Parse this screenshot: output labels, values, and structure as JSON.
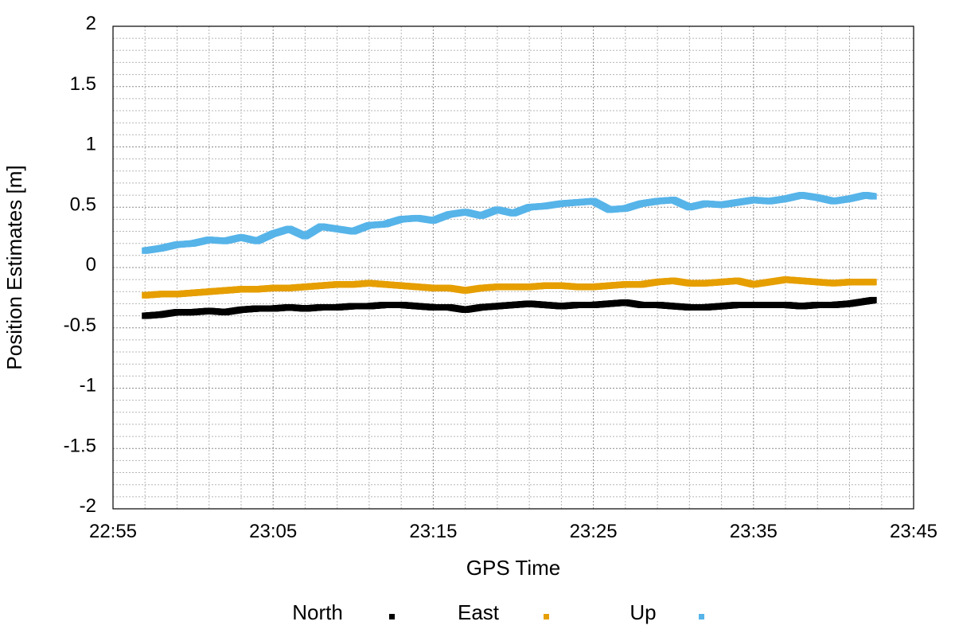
{
  "chart_data": {
    "type": "scatter",
    "title": "",
    "xlabel": "GPS Time",
    "ylabel": "Position Estimates [m]",
    "x_ticks": [
      "22:55",
      "23:05",
      "23:15",
      "23:25",
      "23:35",
      "23:45"
    ],
    "y_ticks": [
      "2",
      "1.5",
      "1",
      "0.5",
      "0",
      "-0.5",
      "-1",
      "-1.5",
      "-2"
    ],
    "xlim": [
      "22:55",
      "23:45"
    ],
    "ylim": [
      -2,
      2
    ],
    "grid": true,
    "legend_position": "bottom",
    "series": [
      {
        "name": "North",
        "color": "#000000",
        "points": [
          [
            "22:57",
            -0.4
          ],
          [
            "22:58",
            -0.39
          ],
          [
            "22:59",
            -0.37
          ],
          [
            "23:00",
            -0.37
          ],
          [
            "23:01",
            -0.36
          ],
          [
            "23:02",
            -0.37
          ],
          [
            "23:03",
            -0.35
          ],
          [
            "23:04",
            -0.34
          ],
          [
            "23:05",
            -0.34
          ],
          [
            "23:06",
            -0.33
          ],
          [
            "23:07",
            -0.34
          ],
          [
            "23:08",
            -0.33
          ],
          [
            "23:09",
            -0.33
          ],
          [
            "23:10",
            -0.32
          ],
          [
            "23:11",
            -0.32
          ],
          [
            "23:12",
            -0.31
          ],
          [
            "23:13",
            -0.31
          ],
          [
            "23:14",
            -0.32
          ],
          [
            "23:15",
            -0.33
          ],
          [
            "23:16",
            -0.33
          ],
          [
            "23:17",
            -0.35
          ],
          [
            "23:18",
            -0.33
          ],
          [
            "23:19",
            -0.32
          ],
          [
            "23:20",
            -0.31
          ],
          [
            "23:21",
            -0.3
          ],
          [
            "23:22",
            -0.31
          ],
          [
            "23:23",
            -0.32
          ],
          [
            "23:24",
            -0.31
          ],
          [
            "23:25",
            -0.31
          ],
          [
            "23:26",
            -0.3
          ],
          [
            "23:27",
            -0.29
          ],
          [
            "23:28",
            -0.31
          ],
          [
            "23:29",
            -0.31
          ],
          [
            "23:30",
            -0.32
          ],
          [
            "23:31",
            -0.33
          ],
          [
            "23:32",
            -0.33
          ],
          [
            "23:33",
            -0.32
          ],
          [
            "23:34",
            -0.31
          ],
          [
            "23:35",
            -0.31
          ],
          [
            "23:36",
            -0.31
          ],
          [
            "23:37",
            -0.31
          ],
          [
            "23:38",
            -0.32
          ],
          [
            "23:39",
            -0.31
          ],
          [
            "23:40",
            -0.31
          ],
          [
            "23:41",
            -0.3
          ],
          [
            "23:42",
            -0.28
          ],
          [
            "23:42.5",
            -0.27
          ]
        ]
      },
      {
        "name": "East",
        "color": "#E69F00",
        "points": [
          [
            "22:57",
            -0.23
          ],
          [
            "22:58",
            -0.22
          ],
          [
            "22:59",
            -0.22
          ],
          [
            "23:00",
            -0.21
          ],
          [
            "23:01",
            -0.2
          ],
          [
            "23:02",
            -0.19
          ],
          [
            "23:03",
            -0.18
          ],
          [
            "23:04",
            -0.18
          ],
          [
            "23:05",
            -0.17
          ],
          [
            "23:06",
            -0.17
          ],
          [
            "23:07",
            -0.16
          ],
          [
            "23:08",
            -0.15
          ],
          [
            "23:09",
            -0.14
          ],
          [
            "23:10",
            -0.14
          ],
          [
            "23:11",
            -0.13
          ],
          [
            "23:12",
            -0.14
          ],
          [
            "23:13",
            -0.15
          ],
          [
            "23:14",
            -0.16
          ],
          [
            "23:15",
            -0.17
          ],
          [
            "23:16",
            -0.17
          ],
          [
            "23:17",
            -0.19
          ],
          [
            "23:18",
            -0.17
          ],
          [
            "23:19",
            -0.16
          ],
          [
            "23:20",
            -0.16
          ],
          [
            "23:21",
            -0.16
          ],
          [
            "23:22",
            -0.15
          ],
          [
            "23:23",
            -0.15
          ],
          [
            "23:24",
            -0.16
          ],
          [
            "23:25",
            -0.16
          ],
          [
            "23:26",
            -0.15
          ],
          [
            "23:27",
            -0.14
          ],
          [
            "23:28",
            -0.14
          ],
          [
            "23:29",
            -0.12
          ],
          [
            "23:30",
            -0.11
          ],
          [
            "23:31",
            -0.13
          ],
          [
            "23:32",
            -0.13
          ],
          [
            "23:33",
            -0.12
          ],
          [
            "23:34",
            -0.11
          ],
          [
            "23:35",
            -0.14
          ],
          [
            "23:36",
            -0.12
          ],
          [
            "23:37",
            -0.1
          ],
          [
            "23:38",
            -0.11
          ],
          [
            "23:39",
            -0.12
          ],
          [
            "23:40",
            -0.13
          ],
          [
            "23:41",
            -0.12
          ],
          [
            "23:42",
            -0.12
          ],
          [
            "23:42.5",
            -0.12
          ]
        ]
      },
      {
        "name": "Up",
        "color": "#56B4E9",
        "points": [
          [
            "22:57",
            0.14
          ],
          [
            "22:58",
            0.16
          ],
          [
            "22:59",
            0.19
          ],
          [
            "23:00",
            0.2
          ],
          [
            "23:01",
            0.23
          ],
          [
            "23:02",
            0.22
          ],
          [
            "23:03",
            0.25
          ],
          [
            "23:04",
            0.22
          ],
          [
            "23:05",
            0.28
          ],
          [
            "23:06",
            0.32
          ],
          [
            "23:07",
            0.26
          ],
          [
            "23:08",
            0.34
          ],
          [
            "23:09",
            0.32
          ],
          [
            "23:10",
            0.3
          ],
          [
            "23:11",
            0.35
          ],
          [
            "23:12",
            0.36
          ],
          [
            "23:13",
            0.4
          ],
          [
            "23:14",
            0.41
          ],
          [
            "23:15",
            0.39
          ],
          [
            "23:16",
            0.44
          ],
          [
            "23:17",
            0.46
          ],
          [
            "23:18",
            0.43
          ],
          [
            "23:19",
            0.48
          ],
          [
            "23:20",
            0.45
          ],
          [
            "23:21",
            0.5
          ],
          [
            "23:22",
            0.51
          ],
          [
            "23:23",
            0.53
          ],
          [
            "23:24",
            0.54
          ],
          [
            "23:25",
            0.55
          ],
          [
            "23:26",
            0.48
          ],
          [
            "23:27",
            0.49
          ],
          [
            "23:28",
            0.53
          ],
          [
            "23:29",
            0.55
          ],
          [
            "23:30",
            0.56
          ],
          [
            "23:31",
            0.5
          ],
          [
            "23:32",
            0.53
          ],
          [
            "23:33",
            0.52
          ],
          [
            "23:34",
            0.54
          ],
          [
            "23:35",
            0.56
          ],
          [
            "23:36",
            0.55
          ],
          [
            "23:37",
            0.57
          ],
          [
            "23:38",
            0.6
          ],
          [
            "23:39",
            0.58
          ],
          [
            "23:40",
            0.55
          ],
          [
            "23:41",
            0.57
          ],
          [
            "23:42",
            0.6
          ],
          [
            "23:42.5",
            0.59
          ]
        ]
      }
    ]
  }
}
